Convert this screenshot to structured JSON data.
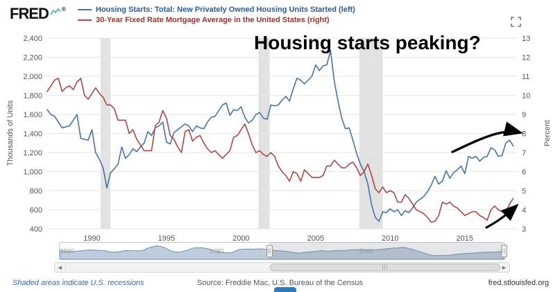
{
  "header": {
    "logo": "FRED",
    "reg": "®",
    "legend": [
      {
        "label": "Housing Starts: Total: New Privately Owned Housing Units Started (left)",
        "color": "#2d5c94"
      },
      {
        "label": "30-Year Fixed Rate Mortgage Average in the United States (right)",
        "color": "#97332f"
      }
    ]
  },
  "annotation": {
    "text": "Housing starts peaking?"
  },
  "icons": {
    "arrow_left": "◀",
    "arrow_right": "▶",
    "grip": "|||",
    "handle_grip": "||"
  },
  "chart_data": {
    "type": "line",
    "title": "Housing starts peaking?",
    "x_start": 1987.0,
    "x_step": 0.25,
    "x_range": [
      1987,
      2018.5
    ],
    "x_ticks": [
      1990,
      1995,
      2000,
      2005,
      2010,
      2015
    ],
    "grid": true,
    "left_axis": {
      "label": "Thousands of Units",
      "range": [
        400,
        2400
      ],
      "ticks": [
        400,
        600,
        800,
        1000,
        1200,
        1400,
        1600,
        1800,
        2000,
        2200,
        2400
      ]
    },
    "right_axis": {
      "label": "Percent",
      "range": [
        3,
        13
      ],
      "ticks": [
        3,
        4,
        5,
        6,
        7,
        8,
        9,
        10,
        11,
        12,
        13
      ]
    },
    "recessions": [
      [
        1990.58,
        1991.25
      ],
      [
        2001.17,
        2001.92
      ],
      [
        2007.92,
        2009.5
      ]
    ],
    "series": [
      {
        "name": "Housing Starts: Total: New Privately Owned Housing Units Started",
        "axis": "left",
        "color": "#4572a7",
        "units": "Thousands of Units",
        "values": [
          1650,
          1600,
          1580,
          1520,
          1460,
          1470,
          1480,
          1540,
          1600,
          1350,
          1340,
          1330,
          1440,
          1200,
          1130,
          1040,
          830,
          990,
          1030,
          1080,
          1260,
          1140,
          1180,
          1240,
          1210,
          1260,
          1300,
          1420,
          1380,
          1460,
          1480,
          1520,
          1310,
          1290,
          1410,
          1440,
          1470,
          1500,
          1480,
          1420,
          1480,
          1460,
          1450,
          1520,
          1570,
          1580,
          1640,
          1700,
          1720,
          1590,
          1650,
          1640,
          1680,
          1570,
          1510,
          1540,
          1600,
          1620,
          1560,
          1550,
          1700,
          1690,
          1700,
          1750,
          1790,
          1740,
          1870,
          1980,
          1960,
          1920,
          1960,
          2000,
          2120,
          2060,
          2110,
          2120,
          2270,
          1950,
          1740,
          1560,
          1450,
          1460,
          1330,
          1190,
          1080,
          1000,
          870,
          650,
          520,
          480,
          580,
          570,
          610,
          580,
          600,
          540,
          590,
          570,
          620,
          680,
          710,
          740,
          790,
          860,
          950,
          870,
          900,
          1010,
          930,
          990,
          1020,
          1060,
          980,
          1160,
          1140,
          1160,
          1110,
          1150,
          1160,
          1250,
          1230,
          1160,
          1170,
          1300,
          1330,
          1270
        ]
      },
      {
        "name": "30-Year Fixed Rate Mortgage Average in the United States",
        "axis": "right",
        "color": "#aa4643",
        "units": "Percent",
        "values": [
          10.2,
          10.5,
          10.8,
          10.9,
          10.2,
          10.4,
          10.5,
          10.3,
          10.7,
          10.9,
          10.0,
          9.8,
          10.1,
          10.4,
          10.1,
          9.9,
          9.5,
          9.5,
          9.3,
          8.7,
          8.7,
          8.7,
          8.0,
          8.2,
          7.7,
          7.4,
          7.1,
          7.1,
          7.1,
          8.4,
          8.6,
          9.2,
          8.8,
          7.9,
          7.7,
          7.3,
          7.0,
          8.1,
          8.2,
          7.6,
          7.8,
          7.9,
          7.5,
          7.2,
          7.0,
          7.1,
          6.9,
          6.7,
          6.9,
          7.1,
          7.8,
          7.9,
          8.2,
          8.5,
          8.0,
          7.4,
          7.0,
          7.1,
          6.9,
          6.8,
          7.0,
          6.8,
          6.3,
          6.0,
          5.8,
          5.5,
          6.0,
          5.9,
          5.5,
          6.1,
          5.9,
          5.7,
          5.7,
          5.7,
          5.8,
          6.3,
          6.3,
          6.6,
          6.4,
          6.2,
          6.2,
          6.4,
          6.5,
          6.2,
          5.8,
          6.0,
          6.4,
          5.8,
          5.1,
          4.9,
          5.2,
          4.9,
          5.0,
          4.9,
          4.4,
          4.4,
          4.8,
          4.6,
          4.3,
          4.0,
          3.9,
          3.8,
          3.6,
          3.35,
          3.4,
          3.7,
          4.4,
          4.3,
          4.4,
          4.2,
          4.1,
          3.9,
          3.7,
          3.8,
          3.9,
          3.9,
          3.7,
          3.6,
          3.45,
          4.0,
          4.2,
          4.0,
          3.9,
          3.9,
          4.3,
          4.6
        ]
      }
    ]
  },
  "slider": {
    "x_range": [
      1959,
      2018.5
    ],
    "selected": [
      1987,
      2018.5
    ],
    "labels": [
      1960,
      1980,
      2000
    ],
    "overview": {
      "x_start": 1959,
      "x_step": 1,
      "values": [
        1550,
        1250,
        1310,
        1460,
        1600,
        1530,
        1470,
        1170,
        1290,
        1510,
        1470,
        1430,
        2050,
        2360,
        2050,
        1340,
        1160,
        1540,
        1990,
        2020,
        1750,
        1290,
        1080,
        1060,
        1700,
        1750,
        1740,
        1810,
        1620,
        1490,
        1380,
        1190,
        1010,
        1200,
        1290,
        1460,
        1350,
        1480,
        1470,
        1620,
        1640,
        1570,
        1600,
        1700,
        1850,
        1960,
        2070,
        1800,
        1360,
        910,
        550,
        590,
        610,
        780,
        930,
        1000,
        1110,
        1180,
        1210,
        1300
      ]
    }
  },
  "footer": {
    "left": "Shaded areas indicate U.S. recessions",
    "center": "Source: Freddie Mac, U.S. Bureau of the Census",
    "right": "fred.stlouisfed.org"
  }
}
